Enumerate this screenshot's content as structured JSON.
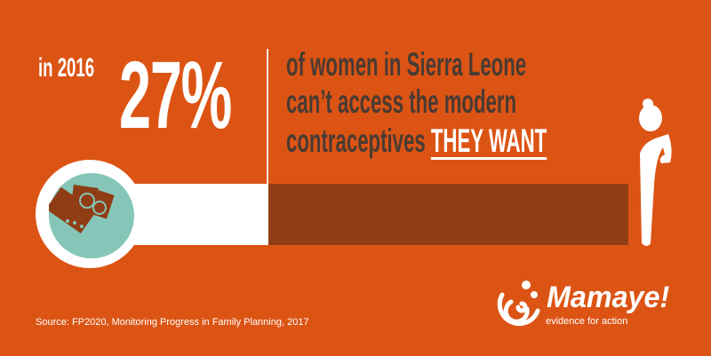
{
  "headline": {
    "year": "in 2016",
    "percent": "27%",
    "line1": "of women in Sierra Leone",
    "line2": "can’t access the modern",
    "line3_prefix": "contraceptives ",
    "line3_emphasis": "THEY WANT"
  },
  "bar": {
    "value_percent": 27,
    "colors": {
      "highlight": "#ffffff",
      "remainder": "#903c15"
    }
  },
  "icons": [
    "contraceptives-icon",
    "woman-icon"
  ],
  "source": "Source: FP2020, Monitoring Progress in Family Planning, 2017",
  "logo": {
    "name": "Mamaye!",
    "tagline": "evidence for action"
  },
  "colors": {
    "background": "#dc5414",
    "text_dark": "#4a3b32",
    "teal": "#85c6b8"
  }
}
